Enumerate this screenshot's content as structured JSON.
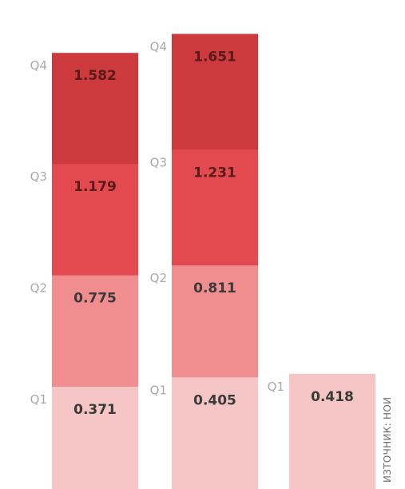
{
  "chart_data": {
    "type": "bar",
    "stacked": "cumulative",
    "title": "",
    "xlabel": "",
    "ylabel": "",
    "ylim": [
      0,
      1.75
    ],
    "grid": false,
    "legend": "none",
    "columns": [
      {
        "segments": [
          {
            "quarter": "Q1",
            "value": 0.371,
            "color": "#f6c5c5"
          },
          {
            "quarter": "Q2",
            "value": 0.775,
            "color": "#ef8d8f"
          },
          {
            "quarter": "Q3",
            "value": 1.179,
            "color": "#e24a4f"
          },
          {
            "quarter": "Q4",
            "value": 1.582,
            "color": "#cc3a3d"
          }
        ]
      },
      {
        "segments": [
          {
            "quarter": "Q1",
            "value": 0.405,
            "color": "#f6c5c5"
          },
          {
            "quarter": "Q2",
            "value": 0.811,
            "color": "#ef8d8f"
          },
          {
            "quarter": "Q3",
            "value": 1.231,
            "color": "#e24a4f"
          },
          {
            "quarter": "Q4",
            "value": 1.651,
            "color": "#cc3a3d"
          }
        ]
      },
      {
        "segments": [
          {
            "quarter": "Q1",
            "value": 0.418,
            "color": "#f6c5c5"
          }
        ]
      }
    ],
    "value_label_colors": {
      "light": "#3a3a3a",
      "dark": "#5a1a1a"
    },
    "source": "ИЗТОЧНИК: НОИ"
  }
}
